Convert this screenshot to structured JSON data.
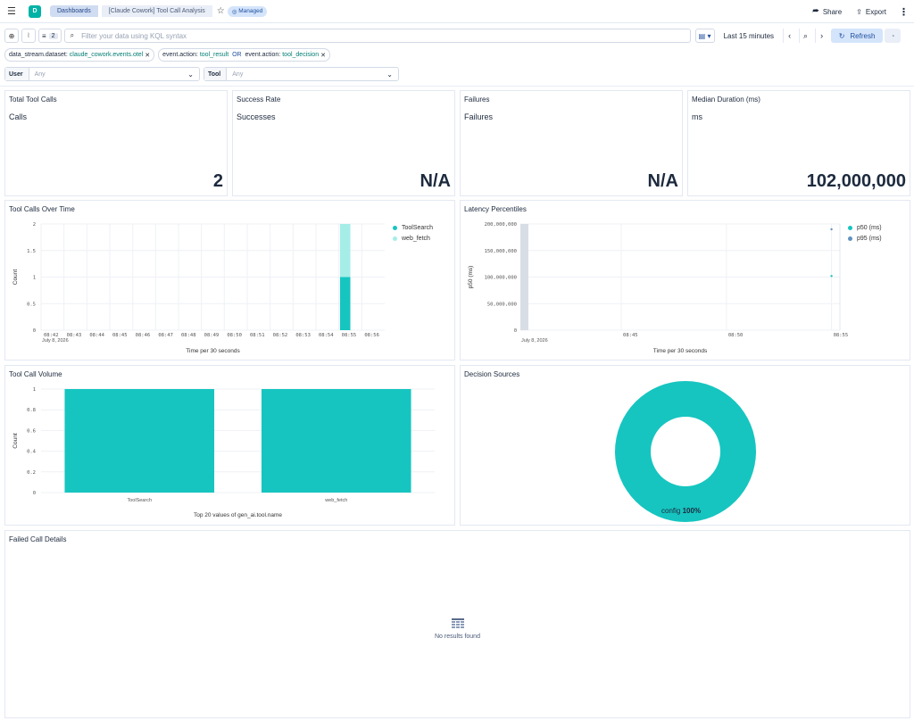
{
  "header": {
    "breadcrumbs": [
      "Dashboards",
      "[Claude Cowork] Tool Call Analysis"
    ],
    "managed_label": "Managed",
    "share_label": "Share",
    "export_label": "Export",
    "logo_letter": "D"
  },
  "query": {
    "filter_count": "2",
    "placeholder": "Filter your data using KQL syntax",
    "time_range": "Last 15 minutes",
    "refresh_label": "Refresh"
  },
  "filters": [
    {
      "field": "data_stream.dataset: ",
      "value": "claude_cowork.events.otel"
    },
    {
      "field": "event.action: ",
      "value": "tool_result",
      "or": " OR ",
      "field2": "event.action: ",
      "value2": "tool_decision"
    }
  ],
  "controls": [
    {
      "label": "User",
      "value": "Any"
    },
    {
      "label": "Tool",
      "value": "Any"
    }
  ],
  "metrics": [
    {
      "title": "Total Tool Calls",
      "subtitle": "Calls",
      "value": "2"
    },
    {
      "title": "Success Rate",
      "subtitle": "Successes",
      "value": "N/A"
    },
    {
      "title": "Failures",
      "subtitle": "Failures",
      "value": "N/A"
    },
    {
      "title": "Median Duration (ms)",
      "subtitle": "ms",
      "value": "102,000,000"
    }
  ],
  "panels": {
    "calls_over_time": "Tool Calls Over Time",
    "latency": "Latency Percentiles",
    "volume": "Tool Call Volume",
    "decision": "Decision Sources",
    "failed": "Failed Call Details",
    "no_results": "No results found"
  },
  "colors": {
    "teal": "#16c5c0",
    "teal_light": "#a6ede8",
    "blue": "#54b399",
    "p95": "#6092c0"
  },
  "chart_data": [
    {
      "type": "bar",
      "title": "Tool Calls Over Time",
      "xlabel": "Time per 30 seconds",
      "ylabel": "Count",
      "date_label": "July 8, 2026",
      "categories": [
        "08:42",
        "08:43",
        "08:44",
        "08:45",
        "08:46",
        "08:47",
        "08:48",
        "08:49",
        "08:50",
        "08:51",
        "08:52",
        "08:53",
        "08:54",
        "08:55",
        "08:56"
      ],
      "series": [
        {
          "name": "ToolSearch",
          "values": [
            0,
            0,
            0,
            0,
            0,
            0,
            0,
            0,
            0,
            0,
            0,
            0,
            0,
            1,
            0
          ]
        },
        {
          "name": "web_fetch",
          "values": [
            0,
            0,
            0,
            0,
            0,
            0,
            0,
            0,
            0,
            0,
            0,
            0,
            0,
            1,
            0
          ]
        }
      ],
      "yticks": [
        "0",
        "0.5",
        "1",
        "1.5",
        "2"
      ],
      "ylim": [
        0,
        2
      ],
      "stacked": true,
      "legend": "right"
    },
    {
      "type": "line",
      "title": "Latency Percentiles",
      "xlabel": "Time per 30 seconds",
      "ylabel": "p50 (ms)",
      "date_label": "July 8, 2026",
      "xticks": [
        "08:45",
        "08:50",
        "08:55"
      ],
      "yticks": [
        "0",
        "50,000,000",
        "100,000,000",
        "150,000,000",
        "200,000,000"
      ],
      "ylim": [
        0,
        200000000
      ],
      "series": [
        {
          "name": "p50 (ms)",
          "points": [
            [
              14.8,
              102000000
            ]
          ]
        },
        {
          "name": "p95 (ms)",
          "points": [
            [
              14.8,
              190000000
            ]
          ]
        }
      ],
      "legend": "right"
    },
    {
      "type": "bar",
      "title": "Tool Call Volume",
      "xlabel": "Top 20 values of gen_ai.tool.name",
      "ylabel": "Count",
      "categories": [
        "ToolSearch",
        "web_fetch"
      ],
      "values": [
        1,
        1
      ],
      "yticks": [
        "0",
        "0.2",
        "0.4",
        "0.6",
        "0.8",
        "1"
      ],
      "ylim": [
        0,
        1
      ]
    },
    {
      "type": "pie",
      "title": "Decision Sources",
      "categories": [
        "config"
      ],
      "values": [
        100
      ],
      "label": "config",
      "percent": "100%"
    }
  ]
}
